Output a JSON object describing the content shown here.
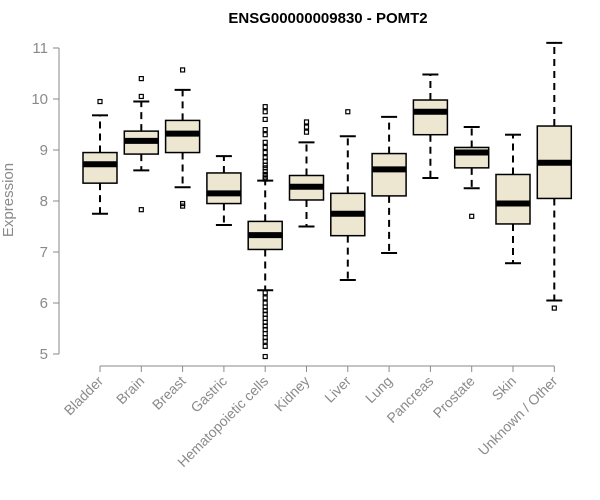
{
  "chart_data": {
    "type": "boxplot",
    "title": "ENSG00000009830 - POMT2",
    "xlabel": "",
    "ylabel": "Expression",
    "ylim": [
      5,
      11
    ],
    "yticks": [
      5,
      6,
      7,
      8,
      9,
      10,
      11
    ],
    "box_fill_color": "#ede7d1",
    "categories": [
      "Bladder",
      "Brain",
      "Breast",
      "Gastric",
      "Hematopoietic cells",
      "Kidney",
      "Liver",
      "Lung",
      "Pancreas",
      "Prostate",
      "Skin",
      "Unknown / Other"
    ],
    "series": [
      {
        "name": "Bladder",
        "whisker_low": 7.75,
        "q1": 8.35,
        "median": 8.72,
        "q3": 8.95,
        "whisker_high": 9.68,
        "outliers": [
          9.95
        ]
      },
      {
        "name": "Brain",
        "whisker_low": 8.6,
        "q1": 8.92,
        "median": 9.18,
        "q3": 9.37,
        "whisker_high": 9.95,
        "outliers": [
          10.4,
          10.05,
          7.83
        ]
      },
      {
        "name": "Breast",
        "whisker_low": 8.27,
        "q1": 8.95,
        "median": 9.32,
        "q3": 9.58,
        "whisker_high": 10.18,
        "outliers": [
          10.57,
          7.95,
          7.9
        ]
      },
      {
        "name": "Gastric",
        "whisker_low": 7.53,
        "q1": 7.95,
        "median": 8.15,
        "q3": 8.55,
        "whisker_high": 8.88,
        "outliers": []
      },
      {
        "name": "Hematopoietic cells",
        "whisker_low": 6.25,
        "q1": 7.05,
        "median": 7.33,
        "q3": 7.6,
        "whisker_high": 8.4,
        "outliers": [
          9.85,
          9.75,
          9.6,
          9.4,
          9.3,
          9.15,
          9.05,
          8.95,
          8.85,
          8.78,
          8.7,
          8.65,
          8.58,
          8.52,
          8.47,
          8.43,
          6.2,
          6.1,
          6.0,
          5.92,
          5.85,
          5.78,
          5.7,
          5.62,
          5.55,
          5.48,
          5.4,
          5.32,
          5.25,
          5.15,
          4.95
        ]
      },
      {
        "name": "Kidney",
        "whisker_low": 7.5,
        "q1": 8.02,
        "median": 8.28,
        "q3": 8.5,
        "whisker_high": 9.15,
        "outliers": [
          9.55,
          9.45,
          9.35
        ]
      },
      {
        "name": "Liver",
        "whisker_low": 6.45,
        "q1": 7.32,
        "median": 7.75,
        "q3": 8.15,
        "whisker_high": 9.27,
        "outliers": [
          9.75
        ]
      },
      {
        "name": "Lung",
        "whisker_low": 6.98,
        "q1": 8.1,
        "median": 8.62,
        "q3": 8.93,
        "whisker_high": 9.65,
        "outliers": []
      },
      {
        "name": "Pancreas",
        "whisker_low": 8.45,
        "q1": 9.3,
        "median": 9.75,
        "q3": 9.98,
        "whisker_high": 10.48,
        "outliers": []
      },
      {
        "name": "Prostate",
        "whisker_low": 8.25,
        "q1": 8.65,
        "median": 8.95,
        "q3": 9.05,
        "whisker_high": 9.45,
        "outliers": [
          7.7
        ]
      },
      {
        "name": "Skin",
        "whisker_low": 6.78,
        "q1": 7.55,
        "median": 7.95,
        "q3": 8.52,
        "whisker_high": 9.3,
        "outliers": []
      },
      {
        "name": "Unknown / Other",
        "whisker_low": 6.05,
        "q1": 8.05,
        "median": 8.75,
        "q3": 9.47,
        "whisker_high": 11.1,
        "outliers": [
          5.9
        ]
      }
    ]
  }
}
